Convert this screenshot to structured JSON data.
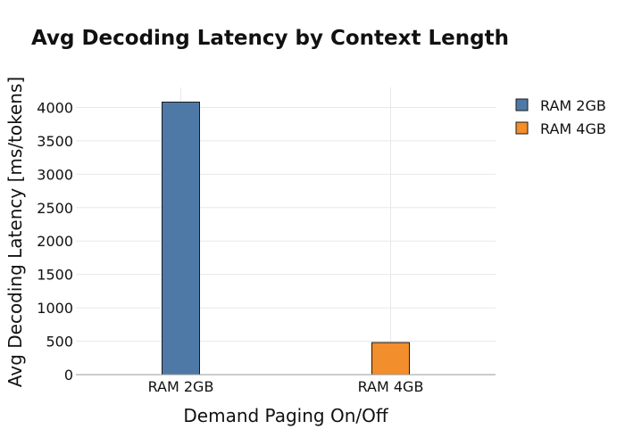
{
  "chart_data": {
    "type": "bar",
    "title": "Avg Decoding Latency by Context Length",
    "xlabel": "Demand Paging On/Off",
    "ylabel": "Avg Decoding Latency [ms/tokens]",
    "categories": [
      "RAM 2GB",
      "RAM 4GB"
    ],
    "series": [
      {
        "name": "RAM 2GB",
        "color": "#4e79a7",
        "values": [
          4080,
          null
        ]
      },
      {
        "name": "RAM 4GB",
        "color": "#f28e2b",
        "values": [
          null,
          480
        ]
      }
    ],
    "ylim": [
      0,
      4300
    ],
    "yticks": [
      0,
      500,
      1000,
      1500,
      2000,
      2500,
      3000,
      3500,
      4000
    ],
    "grid": true,
    "legend_position": "top-right"
  }
}
